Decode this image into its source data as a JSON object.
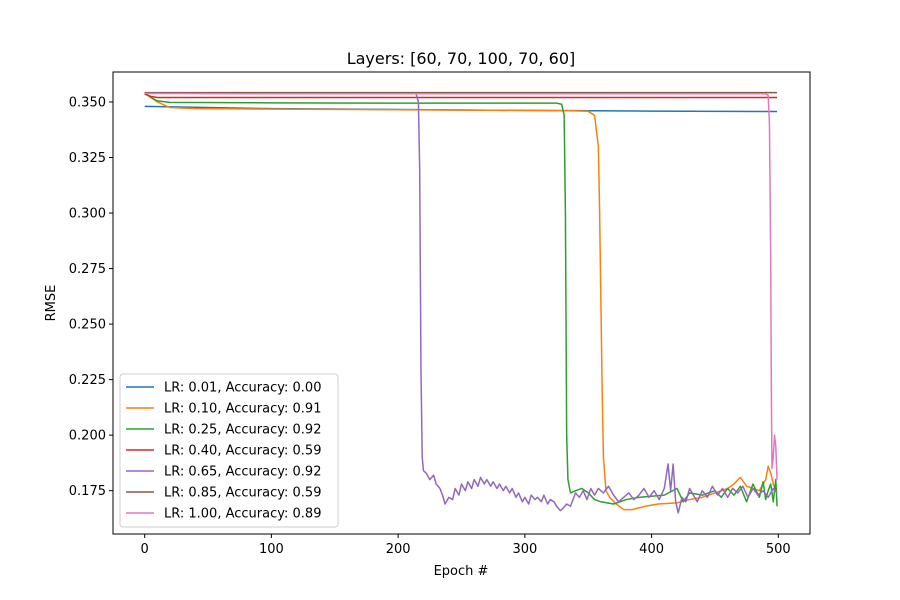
{
  "chart_data": {
    "type": "line",
    "title": "Layers: [60, 70, 100, 70, 60]",
    "xlabel": "Epoch #",
    "ylabel": "RMSE",
    "xlim": [
      -25,
      525
    ],
    "ylim": [
      0.1555,
      0.3635
    ],
    "xticks": [
      0,
      100,
      200,
      300,
      400,
      500
    ],
    "yticks": [
      0.175,
      0.2,
      0.225,
      0.25,
      0.275,
      0.3,
      0.325,
      0.35
    ],
    "ytick_labels": [
      "0.175",
      "0.200",
      "0.225",
      "0.250",
      "0.275",
      "0.300",
      "0.325",
      "0.350"
    ],
    "grid": false,
    "legend_position": "lower-left",
    "series": [
      {
        "name": "LR: 0.01, Accuracy: 0.00",
        "color": "#1f77b4",
        "points": [
          [
            0,
            0.348
          ],
          [
            50,
            0.3475
          ],
          [
            100,
            0.347
          ],
          [
            200,
            0.3466
          ],
          [
            300,
            0.3462
          ],
          [
            400,
            0.3459
          ],
          [
            499,
            0.3457
          ]
        ]
      },
      {
        "name": "LR: 0.10, Accuracy: 0.91",
        "color": "#ff7f0e",
        "points": [
          [
            0,
            0.354
          ],
          [
            5,
            0.352
          ],
          [
            10,
            0.35
          ],
          [
            20,
            0.3475
          ],
          [
            40,
            0.347
          ],
          [
            100,
            0.3468
          ],
          [
            200,
            0.3465
          ],
          [
            300,
            0.3462
          ],
          [
            340,
            0.346
          ],
          [
            350,
            0.3458
          ],
          [
            355,
            0.344
          ],
          [
            358,
            0.33
          ],
          [
            359,
            0.3
          ],
          [
            360,
            0.26
          ],
          [
            361,
            0.22
          ],
          [
            362,
            0.19
          ],
          [
            364,
            0.175
          ],
          [
            367,
            0.172
          ],
          [
            372,
            0.169
          ],
          [
            378,
            0.1665
          ],
          [
            385,
            0.1665
          ],
          [
            395,
            0.168
          ],
          [
            405,
            0.169
          ],
          [
            420,
            0.1695
          ],
          [
            430,
            0.171
          ],
          [
            440,
            0.172
          ],
          [
            450,
            0.174
          ],
          [
            460,
            0.176
          ],
          [
            465,
            0.178
          ],
          [
            470,
            0.181
          ],
          [
            475,
            0.177
          ],
          [
            480,
            0.176
          ],
          [
            485,
            0.175
          ],
          [
            488,
            0.178
          ],
          [
            490,
            0.18
          ],
          [
            492,
            0.186
          ],
          [
            494,
            0.183
          ],
          [
            496,
            0.178
          ],
          [
            498,
            0.175
          ],
          [
            499,
            0.174
          ]
        ]
      },
      {
        "name": "LR: 0.25, Accuracy: 0.92",
        "color": "#2ca02c",
        "points": [
          [
            0,
            0.354
          ],
          [
            5,
            0.352
          ],
          [
            10,
            0.3505
          ],
          [
            20,
            0.3498
          ],
          [
            100,
            0.3496
          ],
          [
            200,
            0.3495
          ],
          [
            300,
            0.3495
          ],
          [
            325,
            0.3495
          ],
          [
            329,
            0.349
          ],
          [
            331,
            0.344
          ],
          [
            332,
            0.3
          ],
          [
            332.5,
            0.25
          ],
          [
            333,
            0.2
          ],
          [
            334,
            0.18
          ],
          [
            336,
            0.174
          ],
          [
            340,
            0.175
          ],
          [
            345,
            0.176
          ],
          [
            350,
            0.174
          ],
          [
            355,
            0.171
          ],
          [
            360,
            0.17
          ],
          [
            365,
            0.1695
          ],
          [
            370,
            0.169
          ],
          [
            375,
            0.17
          ],
          [
            380,
            0.171
          ],
          [
            390,
            0.172
          ],
          [
            400,
            0.1725
          ],
          [
            410,
            0.173
          ],
          [
            420,
            0.176
          ],
          [
            425,
            0.17
          ],
          [
            430,
            0.174
          ],
          [
            440,
            0.173
          ],
          [
            450,
            0.175
          ],
          [
            455,
            0.172
          ],
          [
            460,
            0.176
          ],
          [
            465,
            0.173
          ],
          [
            470,
            0.177
          ],
          [
            475,
            0.17
          ],
          [
            480,
            0.178
          ],
          [
            485,
            0.172
          ],
          [
            488,
            0.179
          ],
          [
            490,
            0.171
          ],
          [
            492,
            0.175
          ],
          [
            494,
            0.178
          ],
          [
            496,
            0.17
          ],
          [
            498,
            0.18
          ],
          [
            499,
            0.168
          ]
        ]
      },
      {
        "name": "LR: 0.40, Accuracy: 0.59",
        "color": "#d62728",
        "points": [
          [
            0,
            0.3535
          ],
          [
            5,
            0.3525
          ],
          [
            10,
            0.352
          ],
          [
            100,
            0.352
          ],
          [
            300,
            0.352
          ],
          [
            499,
            0.352
          ]
        ]
      },
      {
        "name": "LR: 0.65, Accuracy: 0.92",
        "color": "#9467bd",
        "points": [
          [
            0,
            0.354
          ],
          [
            100,
            0.354
          ],
          [
            200,
            0.354
          ],
          [
            214,
            0.354
          ],
          [
            216,
            0.35
          ],
          [
            217,
            0.32
          ],
          [
            218,
            0.23
          ],
          [
            219,
            0.19
          ],
          [
            220,
            0.184
          ],
          [
            222,
            0.183
          ],
          [
            225,
            0.18
          ],
          [
            228,
            0.182
          ],
          [
            230,
            0.178
          ],
          [
            233,
            0.176
          ],
          [
            235,
            0.173
          ],
          [
            237,
            0.169
          ],
          [
            240,
            0.172
          ],
          [
            243,
            0.171
          ],
          [
            245,
            0.176
          ],
          [
            248,
            0.173
          ],
          [
            250,
            0.178
          ],
          [
            253,
            0.175
          ],
          [
            255,
            0.179
          ],
          [
            258,
            0.176
          ],
          [
            260,
            0.18
          ],
          [
            263,
            0.177
          ],
          [
            265,
            0.181
          ],
          [
            268,
            0.178
          ],
          [
            270,
            0.18
          ],
          [
            273,
            0.177
          ],
          [
            275,
            0.179
          ],
          [
            278,
            0.176
          ],
          [
            280,
            0.178
          ],
          [
            283,
            0.175
          ],
          [
            285,
            0.177
          ],
          [
            288,
            0.174
          ],
          [
            290,
            0.176
          ],
          [
            293,
            0.172
          ],
          [
            295,
            0.174
          ],
          [
            298,
            0.17
          ],
          [
            300,
            0.172
          ],
          [
            303,
            0.169
          ],
          [
            305,
            0.173
          ],
          [
            308,
            0.171
          ],
          [
            310,
            0.172
          ],
          [
            313,
            0.17
          ],
          [
            315,
            0.173
          ],
          [
            318,
            0.169
          ],
          [
            320,
            0.171
          ],
          [
            323,
            0.17
          ],
          [
            325,
            0.168
          ],
          [
            328,
            0.166
          ],
          [
            330,
            0.167
          ],
          [
            333,
            0.169
          ],
          [
            336,
            0.168
          ],
          [
            340,
            0.174
          ],
          [
            343,
            0.172
          ],
          [
            346,
            0.175
          ],
          [
            349,
            0.171
          ],
          [
            352,
            0.176
          ],
          [
            355,
            0.173
          ],
          [
            358,
            0.176
          ],
          [
            362,
            0.174
          ],
          [
            366,
            0.177
          ],
          [
            370,
            0.173
          ],
          [
            374,
            0.17
          ],
          [
            378,
            0.172
          ],
          [
            382,
            0.174
          ],
          [
            386,
            0.171
          ],
          [
            390,
            0.173
          ],
          [
            394,
            0.176
          ],
          [
            398,
            0.172
          ],
          [
            402,
            0.175
          ],
          [
            406,
            0.171
          ],
          [
            410,
            0.176
          ],
          [
            413,
            0.187
          ],
          [
            415,
            0.175
          ],
          [
            417,
            0.187
          ],
          [
            419,
            0.17
          ],
          [
            421,
            0.165
          ],
          [
            424,
            0.172
          ],
          [
            427,
            0.17
          ],
          [
            430,
            0.176
          ],
          [
            433,
            0.173
          ],
          [
            436,
            0.17
          ],
          [
            440,
            0.175
          ],
          [
            444,
            0.172
          ],
          [
            448,
            0.177
          ],
          [
            452,
            0.173
          ],
          [
            456,
            0.176
          ],
          [
            460,
            0.172
          ],
          [
            464,
            0.176
          ],
          [
            468,
            0.174
          ],
          [
            472,
            0.177
          ],
          [
            476,
            0.172
          ],
          [
            480,
            0.176
          ],
          [
            484,
            0.173
          ],
          [
            488,
            0.175
          ],
          [
            492,
            0.172
          ],
          [
            496,
            0.176
          ],
          [
            499,
            0.174
          ]
        ]
      },
      {
        "name": "LR: 0.85, Accuracy: 0.59",
        "color": "#8c564b",
        "points": [
          [
            0,
            0.3542
          ],
          [
            100,
            0.3542
          ],
          [
            300,
            0.3542
          ],
          [
            499,
            0.3542
          ]
        ]
      },
      {
        "name": "LR: 1.00, Accuracy: 0.89",
        "color": "#e377c2",
        "points": [
          [
            0,
            0.3538
          ],
          [
            100,
            0.3537
          ],
          [
            300,
            0.3537
          ],
          [
            490,
            0.3537
          ],
          [
            492,
            0.353
          ],
          [
            493,
            0.34
          ],
          [
            494,
            0.28
          ],
          [
            494.5,
            0.22
          ],
          [
            495,
            0.185
          ],
          [
            496,
            0.19
          ],
          [
            497,
            0.2
          ],
          [
            498,
            0.195
          ],
          [
            499,
            0.18
          ]
        ]
      }
    ]
  }
}
